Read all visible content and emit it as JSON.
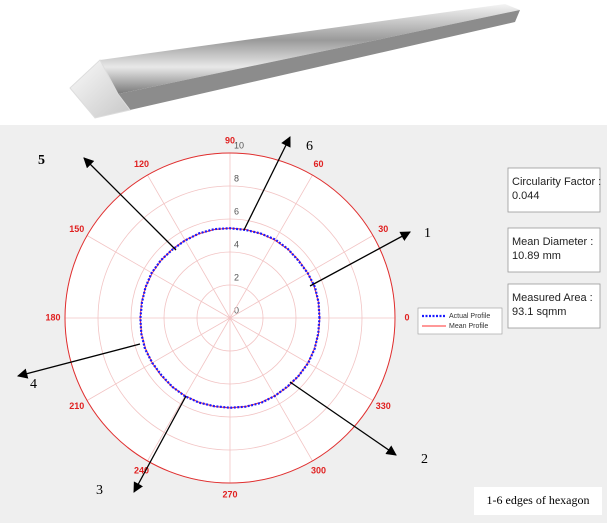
{
  "chart_data": {
    "type": "polar",
    "theta": [
      0,
      10,
      20,
      30,
      40,
      50,
      60,
      70,
      80,
      90,
      100,
      110,
      120,
      130,
      140,
      150,
      160,
      170,
      180,
      190,
      200,
      210,
      220,
      230,
      240,
      250,
      260,
      270,
      280,
      290,
      300,
      310,
      320,
      330,
      340,
      350
    ],
    "rlim": [
      0,
      10
    ],
    "rticks": [
      0,
      2,
      4,
      6,
      8,
      10
    ],
    "thetaticks": [
      0,
      30,
      60,
      90,
      120,
      150,
      180,
      210,
      240,
      270,
      300,
      330
    ],
    "grid": true,
    "legend": "right",
    "series": [
      {
        "name": "Actual Profile",
        "color": "#1a1aff",
        "dash": true,
        "values": [
          5.42,
          5.45,
          5.48,
          5.44,
          5.41,
          5.46,
          5.49,
          5.45,
          5.42,
          5.44,
          5.47,
          5.46,
          5.43,
          5.42,
          5.46,
          5.48,
          5.45,
          5.42,
          5.43,
          5.46,
          5.48,
          5.44,
          5.41,
          5.44,
          5.47,
          5.46,
          5.43,
          5.44,
          5.46,
          5.48,
          5.45,
          5.42,
          5.44,
          5.47,
          5.46,
          5.43
        ]
      },
      {
        "name": "Mean Profile",
        "color": "#ff3030",
        "dash": false,
        "values": [
          5.445,
          5.445,
          5.445,
          5.445,
          5.445,
          5.445,
          5.445,
          5.445,
          5.445,
          5.445,
          5.445,
          5.445,
          5.445,
          5.445,
          5.445,
          5.445,
          5.445,
          5.445,
          5.445,
          5.445,
          5.445,
          5.445,
          5.445,
          5.445,
          5.445,
          5.445,
          5.445,
          5.445,
          5.445,
          5.445,
          5.445,
          5.445,
          5.445,
          5.445,
          5.445,
          5.445
        ]
      }
    ]
  },
  "info_boxes": [
    {
      "label": "Circularity Factor :",
      "value": "0.044"
    },
    {
      "label": "Mean Diameter :",
      "value": "10.89 mm"
    },
    {
      "label": "Measured Area :",
      "value": "93.1 sqmm"
    }
  ],
  "edge_labels": [
    "1",
    "2",
    "3",
    "4",
    "5",
    "6"
  ],
  "caption": "1-6 edges of hexagon"
}
